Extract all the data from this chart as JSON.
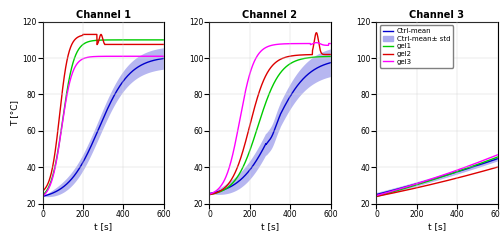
{
  "titles": [
    "Channel 1",
    "Channel 2",
    "Channel 3"
  ],
  "xlabel": "t [s]",
  "ylabel": "T [°C]",
  "xlim": [
    0,
    600
  ],
  "ylim": [
    20,
    120
  ],
  "yticks": [
    20,
    40,
    60,
    80,
    100,
    120
  ],
  "xticks": [
    0,
    200,
    400,
    600
  ],
  "ctrl_mean_color": "#0000cc",
  "std_fill_color": "#aaaaee",
  "gel1_color": "#00cc00",
  "gel2_color": "#dd0000",
  "gel3_color": "#ff00ff",
  "legend_labels": [
    "Ctrl-mean",
    "Ctrl-mean± std",
    "gel1",
    "gel2",
    "gel3"
  ],
  "figsize": [
    5.0,
    2.41
  ],
  "dpi": 100
}
